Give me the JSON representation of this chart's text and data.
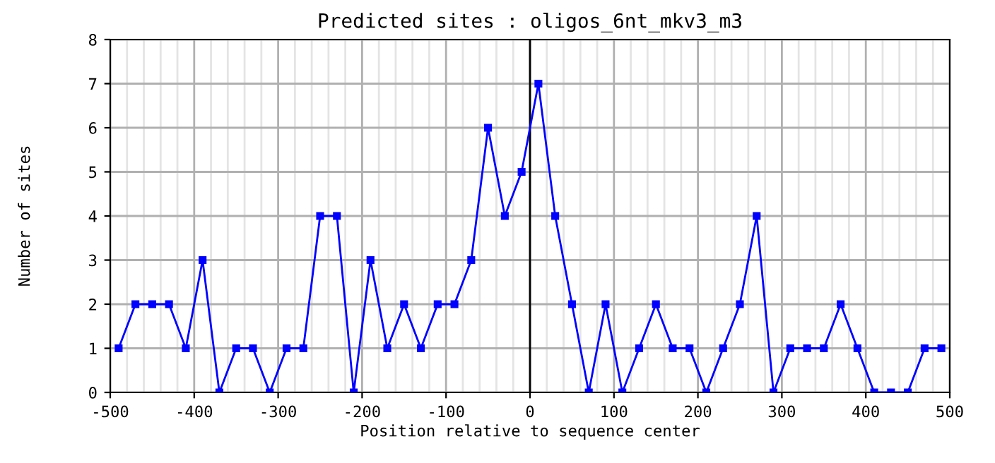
{
  "chart_data": {
    "type": "line",
    "title": "Predicted sites : oligos_6nt_mkv3_m3",
    "xlabel": "Position relative to sequence center",
    "ylabel": "Number of sites",
    "x": [
      -490,
      -470,
      -450,
      -430,
      -410,
      -390,
      -370,
      -350,
      -330,
      -310,
      -290,
      -270,
      -250,
      -230,
      -210,
      -190,
      -170,
      -150,
      -130,
      -110,
      -90,
      -70,
      -50,
      -30,
      -10,
      10,
      30,
      50,
      70,
      90,
      110,
      130,
      150,
      170,
      190,
      210,
      230,
      250,
      270,
      290,
      310,
      330,
      350,
      370,
      390,
      410,
      430,
      450,
      470,
      490
    ],
    "series": [
      {
        "color": "#0000ff",
        "values": [
          1,
          2,
          2,
          2,
          1,
          3,
          0,
          1,
          1,
          0,
          1,
          1,
          4,
          4,
          0,
          3,
          1,
          2,
          1,
          2,
          2,
          3,
          6,
          4,
          5,
          7,
          4,
          2,
          0,
          2,
          0,
          1,
          2,
          1,
          1,
          0,
          1,
          2,
          4,
          0,
          1,
          1,
          1,
          2,
          1,
          0,
          0,
          0,
          1,
          1
        ]
      }
    ],
    "xlim": [
      -500,
      500
    ],
    "xticks": [
      -500,
      -400,
      -300,
      -200,
      -100,
      0,
      100,
      200,
      300,
      400,
      500
    ],
    "ylim": [
      0,
      8
    ],
    "yticks": [
      0,
      1,
      2,
      3,
      4,
      5,
      6,
      7,
      8
    ],
    "grid": true,
    "marker": "square",
    "line_style": "solid",
    "legend": false,
    "ref_lines": [
      {
        "axis": "x",
        "value": 0,
        "color": "#000000"
      }
    ]
  }
}
